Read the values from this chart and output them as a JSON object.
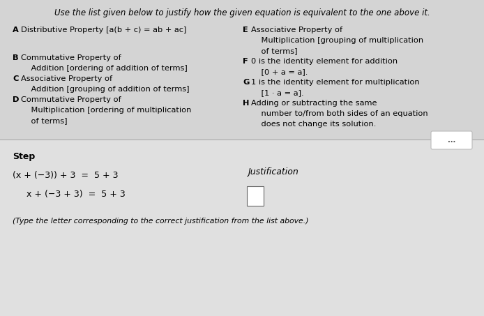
{
  "bg_color": "#d4d4d4",
  "lower_bg_color": "#e0e0e0",
  "title": "Use the list given below to justify how the given equation is equivalent to the one above it.",
  "prop_A_letter": "A",
  "prop_A_line1": "Distributive Property [a(b + c) = ab + ac]",
  "prop_B_letter": "B",
  "prop_B_line1": "Commutative Property of",
  "prop_B_line2": "    Addition [ordering of addition of terms]",
  "prop_C_letter": "C",
  "prop_C_line1": "Associative Property of",
  "prop_C_line2": "    Addition [grouping of addition of terms]",
  "prop_D_letter": "D",
  "prop_D_line1": "Commutative Property of",
  "prop_D_line2": "    Multiplication [ordering of multiplication",
  "prop_D_line3": "    of terms]",
  "prop_E_letter": "E",
  "prop_E_line1": "Associative Property of",
  "prop_E_line2": "    Multiplication [grouping of multiplication",
  "prop_E_line3": "    of terms]",
  "prop_F_letter": "F",
  "prop_F_line1": "0 is the identity element for addition",
  "prop_F_line2": "    [0 + a = a].",
  "prop_G_letter": "G",
  "prop_G_line1": "1 is the identity element for multiplication",
  "prop_G_line2": "    [1 · a = a].",
  "prop_H_letter": "H",
  "prop_H_line1": "Adding or subtracting the same",
  "prop_H_line2": "    number to/from both sides of an equation",
  "prop_H_line3": "    does not change its solution.",
  "step_label": "Step",
  "justification_label": "Justification",
  "step1": "(x + (−3)) + 3  =  5 + 3",
  "step2": "  x + (−3 + 3)  =  5 + 3",
  "footer": "(Type the letter corresponding to the correct justification from the list above.)",
  "ellipsis": "...",
  "font_size_title": 8.5,
  "font_size_body": 8.2,
  "font_size_step": 9.0,
  "font_size_footer": 7.8
}
